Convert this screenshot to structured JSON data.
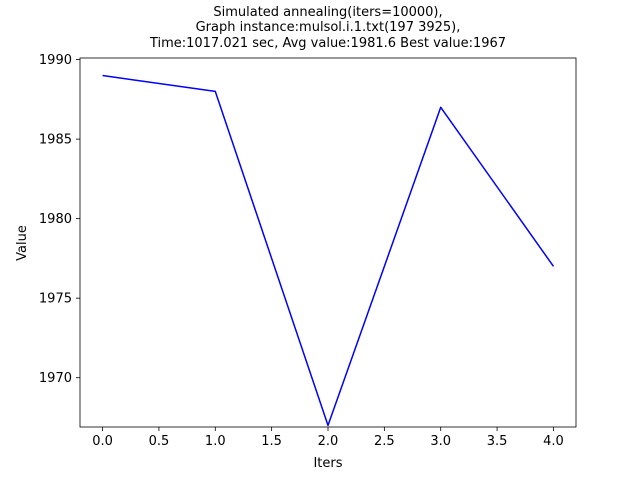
{
  "chart_data": {
    "type": "line",
    "title_lines": [
      "Simulated annealing(iters=10000),",
      "Graph instance:mulsol.i.1.txt(197 3925),",
      "Time:1017.021 sec, Avg value:1981.6 Best value:1967"
    ],
    "xlabel": "Iters",
    "ylabel": "Value",
    "x": [
      0,
      1,
      2,
      3,
      4
    ],
    "series": [
      {
        "values": [
          1989,
          1988,
          1967,
          1987,
          1977
        ],
        "color": "#0000ff"
      }
    ],
    "xlim": [
      -0.2,
      4.2
    ],
    "ylim": [
      1966.9,
      1990.1
    ],
    "xticks": [
      0,
      0.5,
      1,
      1.5,
      2,
      2.5,
      3,
      3.5,
      4
    ],
    "xtick_labels": [
      "0.0",
      "0.5",
      "1.0",
      "1.5",
      "2.0",
      "2.5",
      "3.0",
      "3.5",
      "4.0"
    ],
    "yticks": [
      1970,
      1975,
      1980,
      1985,
      1990
    ],
    "ytick_labels": [
      "1970",
      "1975",
      "1980",
      "1985",
      "1990"
    ],
    "grid": false,
    "legend": "none"
  }
}
